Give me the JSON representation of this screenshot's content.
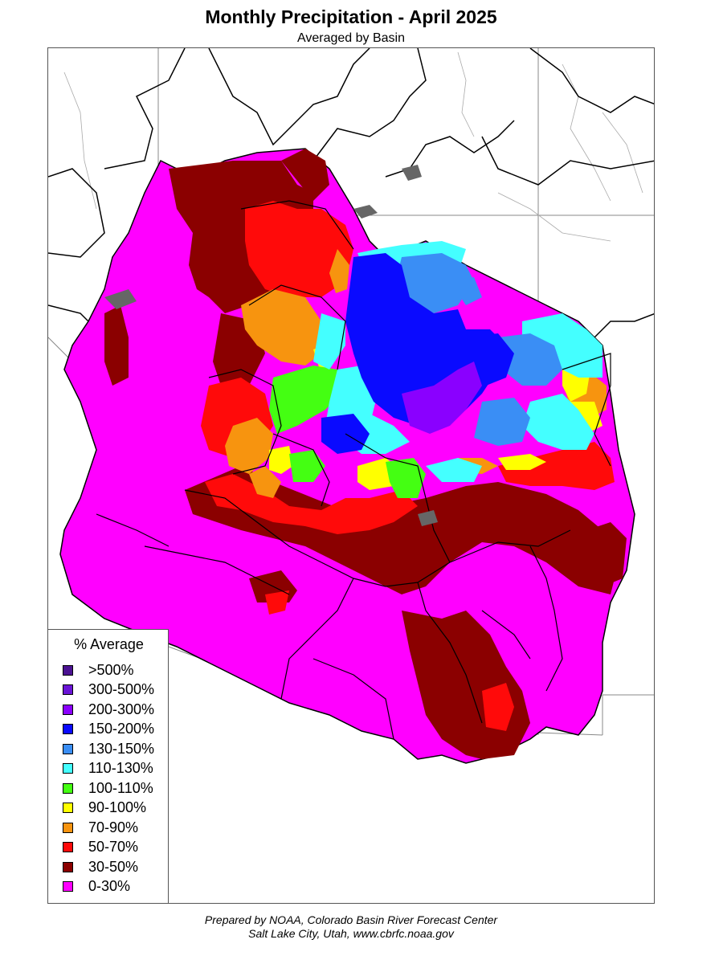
{
  "title": "Monthly Precipitation - April 2025",
  "subtitle": "Averaged by Basin",
  "legend": {
    "title": "% Average",
    "items": [
      {
        "label": ">500%",
        "color": "#4b1292"
      },
      {
        "label": "300-500%",
        "color": "#6a14d6"
      },
      {
        "label": "200-300%",
        "color": "#8a00ff"
      },
      {
        "label": "150-200%",
        "color": "#0a0aff"
      },
      {
        "label": "130-150%",
        "color": "#3a8ef5"
      },
      {
        "label": "110-130%",
        "color": "#44ffff"
      },
      {
        "label": "100-110%",
        "color": "#44ff12"
      },
      {
        "label": "90-100%",
        "color": "#ffff00"
      },
      {
        "label": "70-90%",
        "color": "#f7940f"
      },
      {
        "label": "50-70%",
        "color": "#ff0a0a"
      },
      {
        "label": "30-50%",
        "color": "#8b0000"
      },
      {
        "label": "0-30%",
        "color": "#ff00ff"
      }
    ]
  },
  "credit": {
    "line1": "Prepared by NOAA, Colorado Basin River Forecast Center",
    "line2": "Salt Lake City, Utah, www.cbrfc.noaa.gov"
  }
}
